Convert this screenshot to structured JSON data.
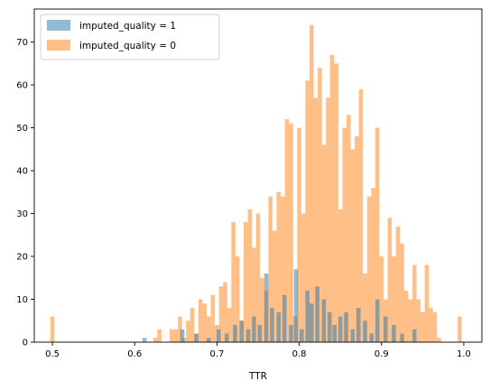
{
  "chart_data": {
    "type": "bar",
    "title": "",
    "xlabel": "TTR",
    "ylabel": "",
    "xlim": [
      0.478,
      1.022
    ],
    "ylim": [
      0,
      77.7
    ],
    "xticks": [
      0.5,
      0.6,
      0.7,
      0.8,
      0.9,
      1.0
    ],
    "xtick_labels": [
      "0.5",
      "0.6",
      "0.7",
      "0.8",
      "0.9",
      "1.0"
    ],
    "yticks": [
      0,
      10,
      20,
      30,
      40,
      50,
      60,
      70
    ],
    "ytick_labels": [
      "0",
      "10",
      "20",
      "30",
      "40",
      "50",
      "60",
      "70"
    ],
    "grid": false,
    "legend_position": "top-left",
    "series": [
      {
        "name": "imputed_quality = 0",
        "color": "#ff7f0e",
        "alpha": 0.5,
        "bin_width": 0.005,
        "x": [
          0.5,
          0.625,
          0.63,
          0.645,
          0.65,
          0.655,
          0.66,
          0.665,
          0.67,
          0.675,
          0.68,
          0.685,
          0.69,
          0.695,
          0.7,
          0.705,
          0.71,
          0.715,
          0.72,
          0.725,
          0.73,
          0.735,
          0.74,
          0.745,
          0.75,
          0.755,
          0.76,
          0.765,
          0.77,
          0.775,
          0.78,
          0.785,
          0.79,
          0.795,
          0.8,
          0.805,
          0.81,
          0.815,
          0.82,
          0.825,
          0.83,
          0.835,
          0.84,
          0.845,
          0.85,
          0.855,
          0.86,
          0.865,
          0.87,
          0.875,
          0.88,
          0.885,
          0.89,
          0.895,
          0.9,
          0.905,
          0.91,
          0.915,
          0.92,
          0.925,
          0.93,
          0.935,
          0.94,
          0.945,
          0.95,
          0.955,
          0.96,
          0.965,
          0.97,
          0.995
        ],
        "values": [
          6,
          1,
          3,
          3,
          3,
          6,
          1,
          5,
          8,
          2,
          10,
          9,
          6,
          11,
          4,
          13,
          14,
          8,
          28,
          20,
          5,
          28,
          31,
          22,
          30,
          15,
          12,
          34,
          26,
          35,
          34,
          52,
          51,
          6,
          50,
          30,
          61,
          74,
          57,
          64,
          46,
          57,
          67,
          65,
          31,
          50,
          53,
          45,
          48,
          59,
          16,
          34,
          36,
          50,
          20,
          10,
          29,
          20,
          27,
          23,
          12,
          10,
          18,
          10,
          7,
          18,
          8,
          7,
          1,
          6
        ]
      },
      {
        "name": "imputed_quality = 1",
        "color": "#1f77b4",
        "alpha": 0.5,
        "bin_width": 0.005,
        "x": [
          0.612,
          0.658,
          0.675,
          0.69,
          0.702,
          0.712,
          0.722,
          0.73,
          0.738,
          0.745,
          0.752,
          0.76,
          0.767,
          0.775,
          0.782,
          0.79,
          0.796,
          0.803,
          0.81,
          0.815,
          0.822,
          0.83,
          0.837,
          0.843,
          0.85,
          0.857,
          0.865,
          0.872,
          0.88,
          0.888,
          0.895,
          0.905,
          0.915,
          0.925,
          0.94
        ],
        "values": [
          1,
          3,
          2,
          1,
          3,
          2,
          4,
          5,
          3,
          6,
          4,
          16,
          8,
          7,
          11,
          4,
          17,
          3,
          12,
          9,
          13,
          10,
          7,
          4,
          6,
          7,
          3,
          8,
          5,
          2,
          10,
          6,
          4,
          2,
          3
        ]
      }
    ],
    "legend": [
      {
        "label": "imputed_quality = 1",
        "color": "#1f77b4"
      },
      {
        "label": "imputed_quality = 0",
        "color": "#ff7f0e"
      }
    ]
  }
}
